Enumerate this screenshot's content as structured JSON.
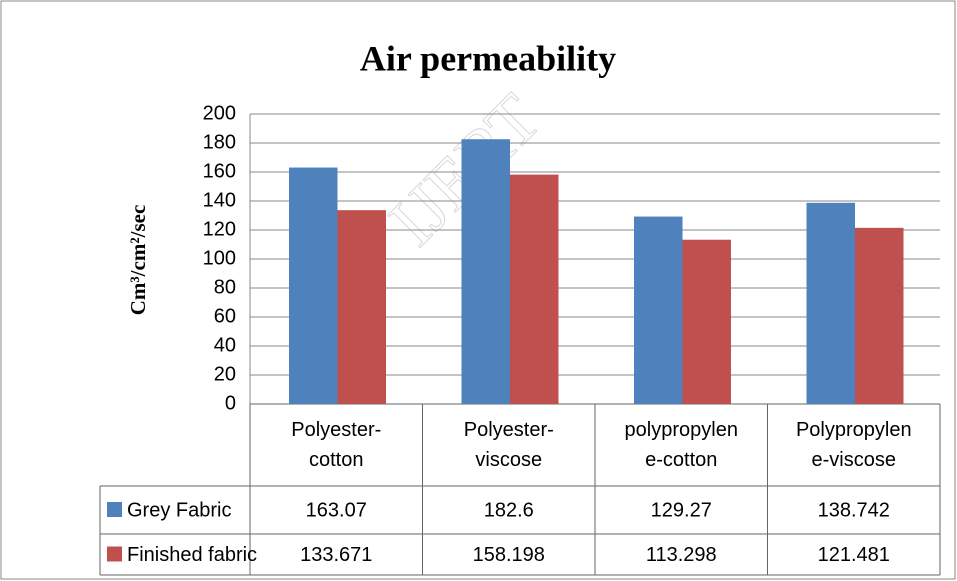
{
  "chart_data": {
    "type": "bar",
    "title": "Air permeability",
    "y_label": "Cm³/cm²/sec",
    "watermark": "IJERT",
    "categories": [
      "Polyester-cotton",
      "Polyester-viscose",
      "polypropylene-cotton",
      "Polypropylene-viscose"
    ],
    "series": [
      {
        "name": "Grey Fabric",
        "color": "#4f81bd",
        "values": [
          163.07,
          182.6,
          129.27,
          138.742
        ]
      },
      {
        "name": "Finished fabric",
        "color": "#c0504d",
        "values": [
          133.671,
          158.198,
          113.298,
          121.481
        ]
      }
    ],
    "ylim": [
      0,
      200
    ],
    "yticks": [
      0,
      20,
      40,
      60,
      80,
      100,
      120,
      140,
      160,
      180,
      200
    ],
    "grid": true,
    "legend": "table"
  }
}
